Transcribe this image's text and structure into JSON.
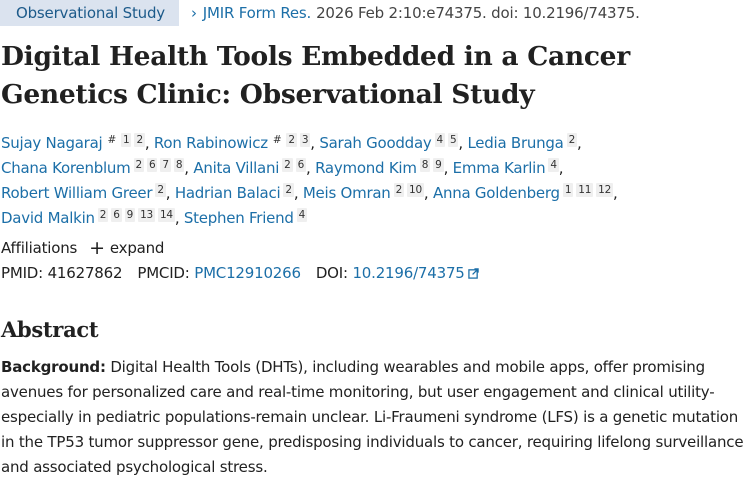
{
  "header": {
    "article_type": "Observational Study",
    "chevron": "›",
    "journal": "JMIR Form Res.",
    "citation": "2026 Feb 2:10:e74375. doi: 10.2196/74375."
  },
  "title": "Digital Health Tools Embedded in a Cancer Genetics Clinic: Observational Study",
  "authors": [
    {
      "name": "Sujay Nagaraj",
      "marks": [
        "#"
      ],
      "affiliations": [
        "1",
        "2"
      ]
    },
    {
      "name": "Ron Rabinowicz",
      "marks": [
        "#"
      ],
      "affiliations": [
        "2",
        "3"
      ]
    },
    {
      "name": "Sarah Goodday",
      "marks": [],
      "affiliations": [
        "4",
        "5"
      ]
    },
    {
      "name": "Ledia Brunga",
      "marks": [],
      "affiliations": [
        "2"
      ]
    },
    {
      "name": "Chana Korenblum",
      "marks": [],
      "affiliations": [
        "2",
        "6",
        "7",
        "8"
      ]
    },
    {
      "name": "Anita Villani",
      "marks": [],
      "affiliations": [
        "2",
        "6"
      ]
    },
    {
      "name": "Raymond Kim",
      "marks": [],
      "affiliations": [
        "8",
        "9"
      ]
    },
    {
      "name": "Emma Karlin",
      "marks": [],
      "affiliations": [
        "4"
      ]
    },
    {
      "name": "Robert William Greer",
      "marks": [],
      "affiliations": [
        "2"
      ]
    },
    {
      "name": "Hadrian Balaci",
      "marks": [],
      "affiliations": [
        "2"
      ]
    },
    {
      "name": "Meis Omran",
      "marks": [],
      "affiliations": [
        "2",
        "10"
      ]
    },
    {
      "name": "Anna Goldenberg",
      "marks": [],
      "affiliations": [
        "1",
        "11",
        "12"
      ]
    },
    {
      "name": "David Malkin",
      "marks": [],
      "affiliations": [
        "2",
        "6",
        "9",
        "13",
        "14"
      ]
    },
    {
      "name": "Stephen Friend",
      "marks": [],
      "affiliations": [
        "4"
      ]
    }
  ],
  "affiliations_toggle": {
    "label": "Affiliations",
    "action": "expand",
    "icon": "plus-icon"
  },
  "identifiers": {
    "pmid_label": "PMID:",
    "pmid": "41627862",
    "pmcid_label": "PMCID:",
    "pmcid": "PMC12910266",
    "doi_label": "DOI:",
    "doi": "10.2196/74375",
    "doi_icon": "external-link-icon"
  },
  "abstract": {
    "heading": "Abstract",
    "sections": [
      {
        "label": "Background:",
        "text": " Digital Health Tools (DHTs), including wearables and mobile apps, offer promising avenues for personalized care and real-time monitoring, but user engagement and clinical utility-especially in pediatric populations-remain unclear. Li-Fraumeni syndrome (LFS) is a genetic mutation in the TP53 tumor suppressor gene, predisposing individuals to cancer, requiring lifelong surveillance and associated psychological stress."
      }
    ]
  },
  "colors": {
    "link": "#1c6fa8",
    "pill_bg": "#dbe3ef",
    "text": "#212121",
    "badge_bg": "#efefef"
  }
}
